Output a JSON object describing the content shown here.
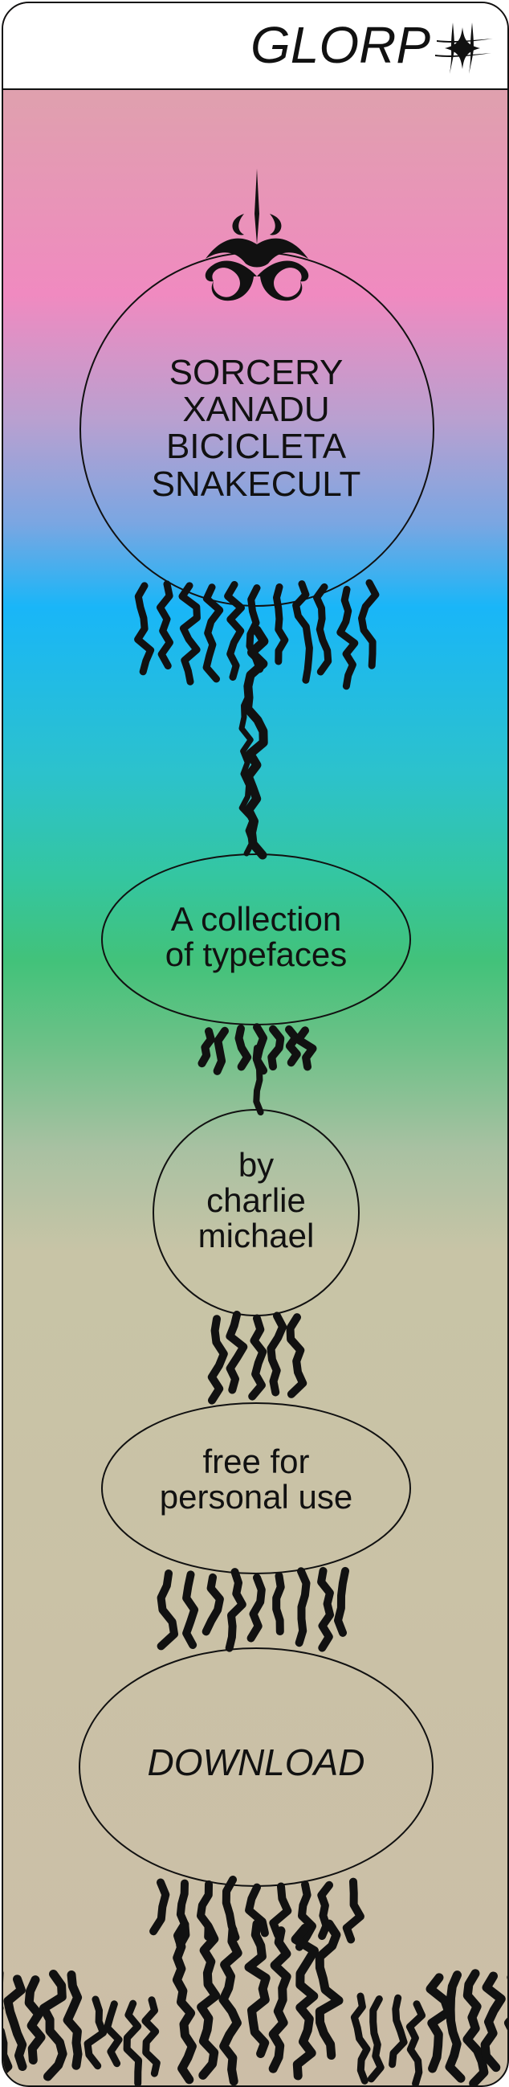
{
  "header": {
    "logo_text": "GLORP",
    "logo_mark_icon": "four-point-sparkle-hash-icon"
  },
  "hero": {
    "lines": [
      "SORCERY",
      "XANADU",
      "BICICLETA",
      "SNAKECULT"
    ]
  },
  "tagline": {
    "lines": [
      "A collection",
      "of typefaces"
    ]
  },
  "author": {
    "lines": [
      "by",
      "charlie",
      "michael"
    ]
  },
  "license": {
    "lines": [
      "free for",
      "personal use"
    ]
  },
  "download": {
    "label": "DOWNLOAD"
  },
  "colors": {
    "outline": "#111111",
    "header_bg": "#ffffff",
    "gradient_top": "#d8aaa6",
    "gradient_pink": "#f08ac0",
    "gradient_blue": "#19b6f8",
    "gradient_green": "#42c27a",
    "gradient_bottom": "#ccbea7"
  }
}
